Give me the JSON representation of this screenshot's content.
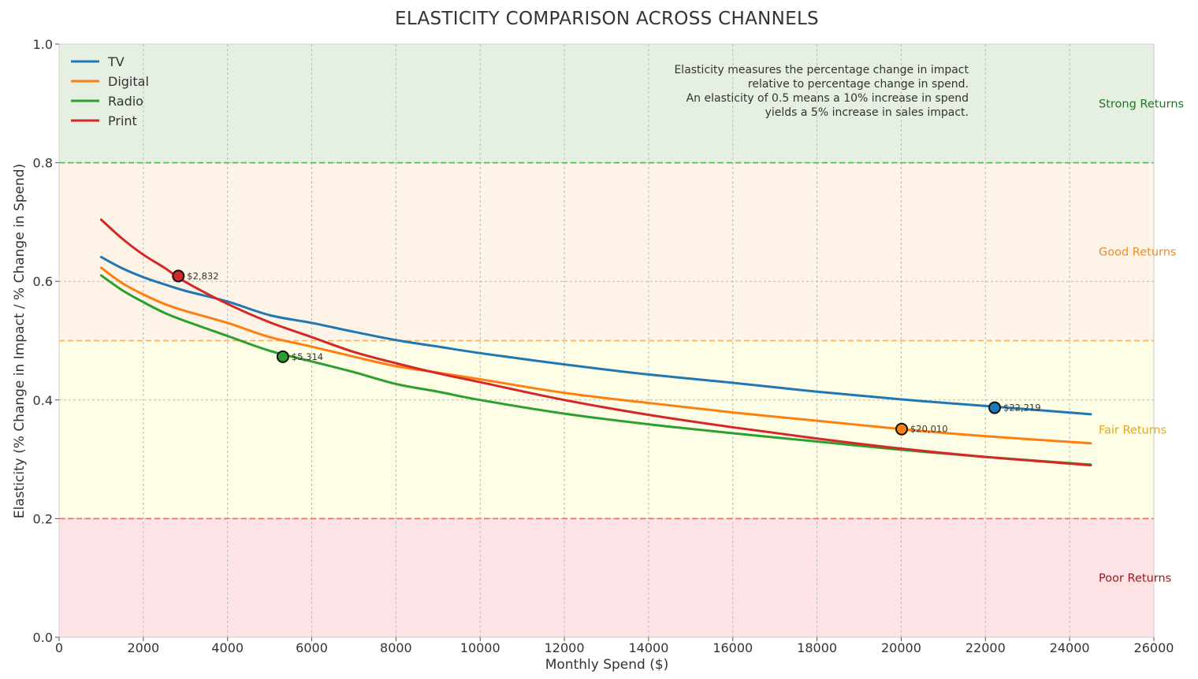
{
  "chart_data": {
    "type": "line",
    "title": "ELASTICITY COMPARISON ACROSS CHANNELS",
    "xlabel": "Monthly Spend ($)",
    "ylabel": "Elasticity (% Change in Impact / % Change in Spend)",
    "xlim": [
      0,
      26000
    ],
    "ylim": [
      0,
      1.0
    ],
    "x_ticks": [
      "0",
      "2000",
      "4000",
      "6000",
      "8000",
      "10000",
      "12000",
      "14000",
      "16000",
      "18000",
      "20000",
      "22000",
      "24000",
      "26000"
    ],
    "y_ticks": [
      "0.0",
      "0.2",
      "0.4",
      "0.6",
      "0.8",
      "1.0"
    ],
    "grid": true,
    "legend_position": "top-left",
    "x": [
      1000,
      1500,
      2000,
      2500,
      3000,
      4000,
      5000,
      6000,
      7000,
      8000,
      9000,
      10000,
      12000,
      14000,
      16000,
      18000,
      20000,
      22000,
      24500
    ],
    "series": [
      {
        "name": "TV",
        "color": "#1f77b4",
        "values": [
          0.641,
          0.622,
          0.607,
          0.595,
          0.584,
          0.566,
          0.543,
          0.53,
          0.515,
          0.501,
          0.49,
          0.479,
          0.46,
          0.443,
          0.429,
          0.414,
          0.401,
          0.39,
          0.376
        ]
      },
      {
        "name": "Digital",
        "color": "#ff7f0e",
        "values": [
          0.623,
          0.597,
          0.578,
          0.562,
          0.55,
          0.53,
          0.506,
          0.49,
          0.473,
          0.457,
          0.446,
          0.435,
          0.412,
          0.395,
          0.379,
          0.365,
          0.351,
          0.339,
          0.327
        ]
      },
      {
        "name": "Radio",
        "color": "#2ca02c",
        "values": [
          0.61,
          0.585,
          0.565,
          0.547,
          0.533,
          0.508,
          0.483,
          0.465,
          0.447,
          0.427,
          0.414,
          0.4,
          0.377,
          0.359,
          0.344,
          0.33,
          0.316,
          0.304,
          0.291
        ]
      },
      {
        "name": "Print",
        "color": "#d62728",
        "values": [
          0.704,
          0.672,
          0.645,
          0.623,
          0.599,
          0.562,
          0.531,
          0.506,
          0.481,
          0.462,
          0.445,
          0.43,
          0.4,
          0.375,
          0.354,
          0.335,
          0.318,
          0.304,
          0.29
        ]
      }
    ],
    "markers": [
      {
        "series": "Print",
        "x": 2832,
        "y": 0.609,
        "label": "$2,832",
        "color": "#d62728"
      },
      {
        "series": "Radio",
        "x": 5314,
        "y": 0.473,
        "label": "$5,314",
        "color": "#2ca02c"
      },
      {
        "series": "Digital",
        "x": 20010,
        "y": 0.351,
        "label": "$20,010",
        "color": "#ff7f0e"
      },
      {
        "series": "TV",
        "x": 22219,
        "y": 0.387,
        "label": "$22,219",
        "color": "#1f77b4"
      }
    ],
    "zones": [
      {
        "label": "Strong Returns",
        "from": 0.8,
        "to": 1.0,
        "fill": "#e5f0e3",
        "line_color": "#5cb85c",
        "text_color": "#1a7a1a"
      },
      {
        "label": "Good Returns",
        "from": 0.5,
        "to": 0.8,
        "fill": "#fdf3e6",
        "line_color": "#f5b461",
        "text_color": "#f08c1c"
      },
      {
        "label": "Fair Returns",
        "from": 0.2,
        "to": 0.5,
        "fill": "#fefde5",
        "line_color": "#f07070",
        "text_color": "#e8a817"
      },
      {
        "label": "Poor Returns",
        "from": 0.0,
        "to": 0.2,
        "fill": "#fde3e5",
        "line_color": "",
        "text_color": "#a31515"
      }
    ],
    "annotation": [
      "Elasticity measures the percentage change in impact",
      "relative to percentage change in spend.",
      "An elasticity of 0.5 means a 10% increase in spend",
      "yields a 5% increase in sales impact."
    ]
  }
}
